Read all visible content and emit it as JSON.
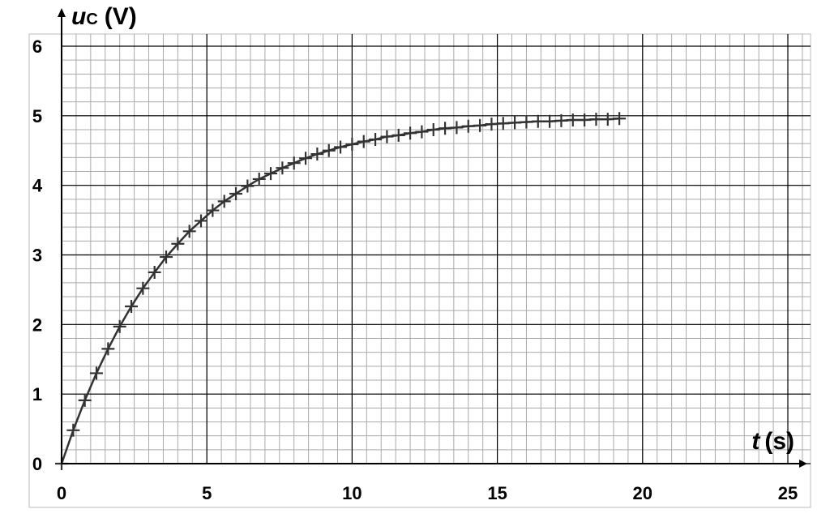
{
  "chart_data": {
    "type": "scatter",
    "y_label": {
      "symbol": "u",
      "subscript": "C",
      "unit": "(V)"
    },
    "x_label": {
      "symbol": "t",
      "unit": "(s)"
    },
    "xlim": [
      0,
      25
    ],
    "xticks": [
      0,
      5,
      10,
      15,
      20,
      25
    ],
    "ylim": [
      0,
      6
    ],
    "yticks": [
      0,
      1,
      2,
      3,
      4,
      5,
      6
    ],
    "grid": {
      "major": true,
      "minor_x_step": 0.5,
      "minor_y_step": 0.2
    },
    "series": [
      {
        "color": "#333333",
        "marker": "+",
        "x": [
          0,
          0.4,
          0.8,
          1.2,
          1.6,
          2.0,
          2.4,
          2.8,
          3.2,
          3.6,
          4.0,
          4.4,
          4.8,
          5.2,
          5.6,
          6.0,
          6.4,
          6.8,
          7.2,
          7.6,
          8.0,
          8.4,
          8.8,
          9.2,
          9.6,
          10.0,
          10.4,
          10.8,
          11.2,
          11.6,
          12.0,
          12.4,
          12.8,
          13.2,
          13.6,
          14.0,
          14.4,
          14.8,
          15.2,
          15.6,
          16.0,
          16.4,
          16.8,
          17.2,
          17.6,
          18.0,
          18.4,
          18.8,
          19.2
        ],
        "values": [
          0,
          0.48,
          0.91,
          1.3,
          1.65,
          1.97,
          2.26,
          2.52,
          2.75,
          2.97,
          3.16,
          3.34,
          3.49,
          3.64,
          3.77,
          3.88,
          3.99,
          4.09,
          4.17,
          4.25,
          4.32,
          4.39,
          4.45,
          4.5,
          4.55,
          4.59,
          4.63,
          4.66,
          4.7,
          4.72,
          4.75,
          4.77,
          4.8,
          4.82,
          4.83,
          4.85,
          4.86,
          4.88,
          4.89,
          4.9,
          4.91,
          4.92,
          4.92,
          4.93,
          4.94,
          4.94,
          4.95,
          4.95,
          4.96
        ]
      }
    ]
  }
}
